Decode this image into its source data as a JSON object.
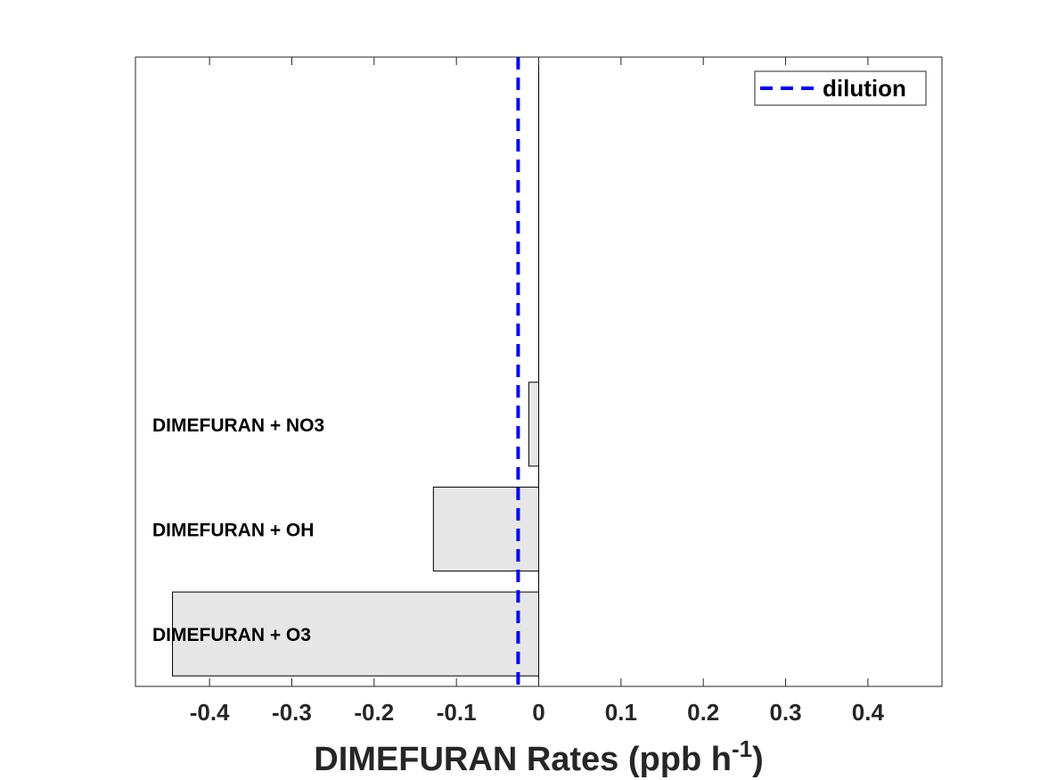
{
  "chart_data": {
    "type": "bar",
    "orientation": "horizontal",
    "categories": [
      "DIMEFURAN + O3",
      "DIMEFURAN + OH",
      "DIMEFURAN + NO3"
    ],
    "values": [
      -0.445,
      -0.128,
      -0.012
    ],
    "category_slots": 6,
    "xlim": [
      -0.49,
      0.49
    ],
    "xticks": [
      -0.4,
      -0.3,
      -0.2,
      -0.1,
      0,
      0.1,
      0.2,
      0.3,
      0.4
    ],
    "xtick_labels": [
      "-0.4",
      "-0.3",
      "-0.2",
      "-0.1",
      "0",
      "0.1",
      "0.2",
      "0.3",
      "0.4"
    ],
    "xlabel": {
      "main": "DIMEFURAN Rates (ppb h",
      "superscript": "-1",
      "close": ")"
    },
    "reference_lines": [
      {
        "name": "dilution",
        "x": -0.025,
        "style": "dashed",
        "color": "#0000ff"
      }
    ],
    "legend": {
      "position": "top-right",
      "entries": [
        "dilution"
      ]
    },
    "bar_color": "#e6e6e6",
    "bar_edge_color": "#000000",
    "grid": false
  }
}
